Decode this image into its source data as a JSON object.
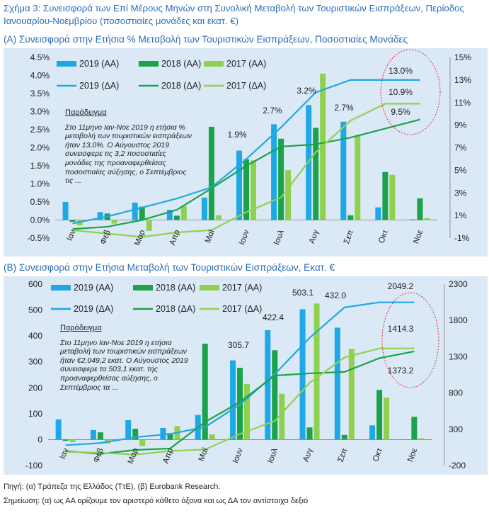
{
  "figure_title": "Σχήμα 3: Συνεισφορά των Επί Μέρους Μηνών στη Συνολική Μεταβολή των Τουριστικών Εισπράξεων, Περίοδος Ιανουαρίου-Νοεμβρίου (ποσοστιαίες μονάδες και εκατ. €)",
  "notes": {
    "a_title": "Παράδειγμα",
    "a_text": "Στο 11μηνο Ιαν-Νοε 2019 η ετήσια % μεταβολή των τουριστικών εισπράξεων ήταν 13,0%. Ο Αύγουστος 2019 συνεισφερε τις 3,2 ποσοστιαίες μονάδες της προαναφερθείσας ποσοστιαίας αύξησης, ο Σεπτέμβριος τις ...",
    "b_title": "Παράδειγμα",
    "b_text": "Στο 11μηνο Ιαν-Νοε 2019 η ετήσια μεταβολή των τουριστικών εισπράξεων ήταν €2.049,2 εκατ. Ο Αύγουστος 2019 συνεισφερε τα 503,1 εκατ. της προαναφερθείσας αύξησης, ο Σεπτέμβριος τα ..."
  },
  "footer": {
    "source": "Πηγή: (α) Τράπεζα της Ελλάδος (ΤτΕ), (β) Eurobank Research.",
    "note": "Σημείωση: (α) ως ΑΑ ορίζουμε τον αριστερό κάθετο άξονα και ως ΔΑ τον αντίστοιχο δεξιό"
  },
  "colors": {
    "y2019": "#1fa8e6",
    "y2018": "#1aa34a",
    "y2017": "#8fd14f",
    "title": "#2a6db5",
    "bg": "#dbe8f5",
    "circle": "#e0312f"
  },
  "chart_data": [
    {
      "panel_title": "(Α) Συνεισφορά στην Ετήσια % Μεταβολή των Τουριστικών Εισπράξεων, Ποσοστιαίες Μονάδες",
      "type": "bar+line",
      "categories": [
        "Ιαν",
        "Φεβ",
        "Μαρ",
        "Απρ",
        "Μαϊ",
        "Ιουν",
        "Ιουλ",
        "Αυγ",
        "Σεπ",
        "Οκτ",
        "Νοε"
      ],
      "left_axis": {
        "min": -0.5,
        "max": 4.5,
        "step": 0.5,
        "ticks": [
          "-0.5%",
          "0.0%",
          "0.5%",
          "1.0%",
          "1.5%",
          "2.0%",
          "2.5%",
          "3.0%",
          "3.5%",
          "4.0%",
          "4.5%"
        ]
      },
      "right_axis": {
        "min": -1,
        "max": 15,
        "step": 2,
        "ticks": [
          "-1%",
          "1%",
          "3%",
          "5%",
          "7%",
          "9%",
          "11%",
          "13%",
          "15%"
        ]
      },
      "bars": [
        {
          "name": "2019 (ΑΑ)",
          "values": [
            0.5,
            0.22,
            0.48,
            0.28,
            0.62,
            1.92,
            2.65,
            3.18,
            2.72,
            0.35,
            0.02
          ]
        },
        {
          "name": "2018 (ΑΑ)",
          "values": [
            -0.05,
            0.18,
            0.37,
            0.12,
            2.58,
            1.68,
            2.25,
            2.55,
            0.13,
            1.33,
            0.6
          ]
        },
        {
          "name": "2017 (ΑΑ)",
          "values": [
            -0.15,
            -0.1,
            -0.3,
            0.38,
            0.13,
            1.65,
            1.38,
            4.05,
            2.35,
            1.25,
            0.05
          ]
        }
      ],
      "lines": [
        {
          "name": "2019 (ΔΑ)",
          "values": [
            0.3,
            0.9,
            1.7,
            2.5,
            3.5,
            6.0,
            8.8,
            11.9,
            13.0,
            13.0,
            13.0
          ]
        },
        {
          "name": "2018 (ΔΑ)",
          "values": [
            -0.2,
            0.0,
            0.6,
            1.5,
            3.4,
            5.4,
            7.1,
            7.3,
            7.9,
            8.7,
            9.5
          ]
        },
        {
          "name": "2017 (ΔΑ)",
          "values": [
            -0.3,
            -0.6,
            -0.9,
            -0.5,
            -0.3,
            1.3,
            2.6,
            6.6,
            9.4,
            10.9,
            10.9
          ]
        }
      ],
      "data_labels": [
        "1.9%",
        "2.7%",
        "3.2%",
        "2.7%",
        "13.0%",
        "10.9%",
        "9.5%"
      ]
    },
    {
      "panel_title": "(Β) Συνεισφορά στην Ετήσια Μεταβολή των Τουριστικών Εισπράξεων, Εκατ. €",
      "type": "bar+line",
      "categories": [
        "Ιαν",
        "Φεβ",
        "Μαρ",
        "Απρ",
        "Μαϊ",
        "Ιουν",
        "Ιουλ",
        "Αυγ",
        "Σεπ",
        "Οκτ",
        "Νοε"
      ],
      "left_axis": {
        "min": -100,
        "max": 600,
        "step": 100,
        "ticks": [
          "-100",
          "0",
          "100",
          "200",
          "300",
          "400",
          "500",
          "600"
        ]
      },
      "right_axis": {
        "min": -200,
        "max": 2300,
        "step": 500,
        "ticks": [
          "-200",
          "300",
          "800",
          "1300",
          "1800",
          "2300"
        ]
      },
      "bars": [
        {
          "name": "2019 (ΑΑ)",
          "values": [
            78,
            37,
            75,
            45,
            95,
            305.7,
            422.4,
            503.1,
            432.0,
            55,
            0
          ]
        },
        {
          "name": "2018 (ΑΑ)",
          "values": [
            -5,
            28,
            42,
            25,
            370,
            277,
            345,
            47,
            18,
            192,
            88
          ]
        },
        {
          "name": "2017 (ΑΑ)",
          "values": [
            -10,
            -15,
            -25,
            52,
            20,
            215,
            177,
            525,
            350,
            162,
            5
          ]
        }
      ],
      "lines": [
        {
          "name": "2019 (ΔΑ)",
          "values": [
            80,
            110,
            190,
            235,
            330,
            640,
            1060,
            1560,
            1980,
            2049.2,
            2049.2
          ]
        },
        {
          "name": "2018 (ΔΑ)",
          "values": [
            0,
            -40,
            15,
            35,
            400,
            675,
            1040,
            1070,
            1090,
            1280,
            1373.2
          ]
        },
        {
          "name": "2017 (ΔΑ)",
          "values": [
            -10,
            -25,
            -50,
            0,
            20,
            235,
            415,
            940,
            1290,
            1414.3,
            1414.3
          ]
        }
      ],
      "data_labels": [
        "305.7",
        "422.4",
        "503.1",
        "432.0",
        "2049.2",
        "1414.3",
        "1373.2"
      ]
    }
  ]
}
